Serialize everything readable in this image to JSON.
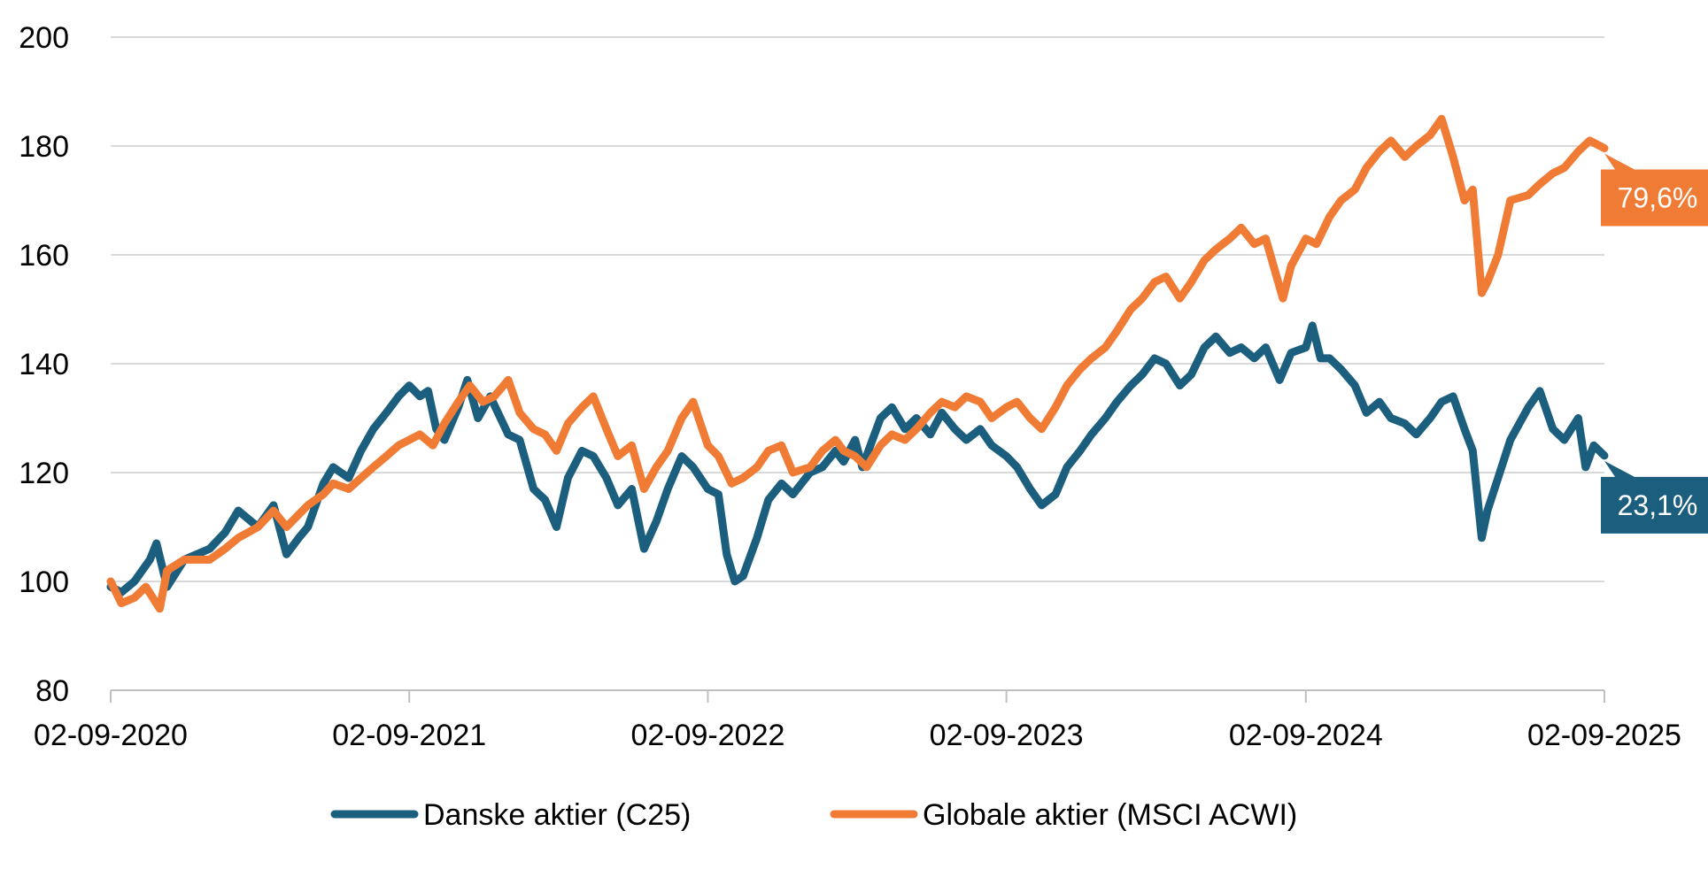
{
  "chart_data": {
    "type": "line",
    "title": "",
    "xlabel": "",
    "ylabel": "",
    "ylim": [
      80,
      200
    ],
    "y_ticks": [
      "80",
      "100",
      "120",
      "140",
      "160",
      "180",
      "200"
    ],
    "x_ticks": [
      "02-09-2020",
      "02-09-2021",
      "02-09-2022",
      "02-09-2023",
      "02-09-2024",
      "02-09-2025"
    ],
    "x_range": [
      "02-09-2020",
      "02-09-2025"
    ],
    "grid": "horizontal",
    "legend_position": "bottom",
    "series": [
      {
        "name": "Danske aktier (C25)",
        "color": "#1b5e7e",
        "end_label": "23,1%",
        "points": [
          [
            "02-09-2020",
            99
          ],
          [
            "15-09-2020",
            98
          ],
          [
            "01-10-2020",
            100
          ],
          [
            "20-10-2020",
            104
          ],
          [
            "28-10-2020",
            107
          ],
          [
            "10-11-2020",
            99
          ],
          [
            "01-12-2020",
            104
          ],
          [
            "01-01-2021",
            106
          ],
          [
            "20-01-2021",
            109
          ],
          [
            "05-02-2021",
            113
          ],
          [
            "01-03-2021",
            110
          ],
          [
            "20-03-2021",
            114
          ],
          [
            "05-04-2021",
            105
          ],
          [
            "20-04-2021",
            108
          ],
          [
            "01-05-2021",
            110
          ],
          [
            "20-05-2021",
            118
          ],
          [
            "01-06-2021",
            121
          ],
          [
            "20-06-2021",
            119
          ],
          [
            "05-07-2021",
            124
          ],
          [
            "20-07-2021",
            128
          ],
          [
            "05-08-2021",
            131
          ],
          [
            "20-08-2021",
            134
          ],
          [
            "02-09-2021",
            136
          ],
          [
            "15-09-2021",
            134
          ],
          [
            "25-09-2021",
            135
          ],
          [
            "05-10-2021",
            128
          ],
          [
            "15-10-2021",
            126
          ],
          [
            "01-11-2021",
            132
          ],
          [
            "12-11-2021",
            137
          ],
          [
            "25-11-2021",
            130
          ],
          [
            "10-12-2021",
            134
          ],
          [
            "01-01-2022",
            127
          ],
          [
            "15-01-2022",
            126
          ],
          [
            "01-02-2022",
            117
          ],
          [
            "15-02-2022",
            115
          ],
          [
            "01-03-2022",
            110
          ],
          [
            "15-03-2022",
            119
          ],
          [
            "01-04-2022",
            124
          ],
          [
            "15-04-2022",
            123
          ],
          [
            "01-05-2022",
            119
          ],
          [
            "15-05-2022",
            114
          ],
          [
            "01-06-2022",
            117
          ],
          [
            "16-06-2022",
            106
          ],
          [
            "01-07-2022",
            111
          ],
          [
            "15-07-2022",
            117
          ],
          [
            "01-08-2022",
            123
          ],
          [
            "15-08-2022",
            121
          ],
          [
            "02-09-2022",
            117
          ],
          [
            "15-09-2022",
            116
          ],
          [
            "25-09-2022",
            105
          ],
          [
            "05-10-2022",
            100
          ],
          [
            "15-10-2022",
            101
          ],
          [
            "01-11-2022",
            108
          ],
          [
            "15-11-2022",
            115
          ],
          [
            "01-12-2022",
            118
          ],
          [
            "15-12-2022",
            116
          ],
          [
            "05-01-2023",
            120
          ],
          [
            "20-01-2023",
            121
          ],
          [
            "05-02-2023",
            124
          ],
          [
            "15-02-2023",
            122
          ],
          [
            "01-03-2023",
            126
          ],
          [
            "10-03-2023",
            121
          ],
          [
            "01-04-2023",
            130
          ],
          [
            "15-04-2023",
            132
          ],
          [
            "01-05-2023",
            128
          ],
          [
            "15-05-2023",
            130
          ],
          [
            "01-06-2023",
            127
          ],
          [
            "15-06-2023",
            131
          ],
          [
            "01-07-2023",
            128
          ],
          [
            "15-07-2023",
            126
          ],
          [
            "01-08-2023",
            128
          ],
          [
            "15-08-2023",
            125
          ],
          [
            "02-09-2023",
            123
          ],
          [
            "15-09-2023",
            121
          ],
          [
            "01-10-2023",
            117
          ],
          [
            "15-10-2023",
            114
          ],
          [
            "01-11-2023",
            116
          ],
          [
            "15-11-2023",
            121
          ],
          [
            "01-12-2023",
            124
          ],
          [
            "15-12-2023",
            127
          ],
          [
            "01-01-2024",
            130
          ],
          [
            "15-01-2024",
            133
          ],
          [
            "01-02-2024",
            136
          ],
          [
            "15-02-2024",
            138
          ],
          [
            "01-03-2024",
            141
          ],
          [
            "15-03-2024",
            140
          ],
          [
            "01-04-2024",
            136
          ],
          [
            "15-04-2024",
            138
          ],
          [
            "01-05-2024",
            143
          ],
          [
            "15-05-2024",
            145
          ],
          [
            "01-06-2024",
            142
          ],
          [
            "15-06-2024",
            143
          ],
          [
            "01-07-2024",
            141
          ],
          [
            "15-07-2024",
            143
          ],
          [
            "01-08-2024",
            137
          ],
          [
            "15-08-2024",
            142
          ],
          [
            "02-09-2024",
            143
          ],
          [
            "10-09-2024",
            147
          ],
          [
            "20-09-2024",
            141
          ],
          [
            "01-10-2024",
            141
          ],
          [
            "15-10-2024",
            139
          ],
          [
            "01-11-2024",
            136
          ],
          [
            "15-11-2024",
            131
          ],
          [
            "01-12-2024",
            133
          ],
          [
            "15-12-2024",
            130
          ],
          [
            "01-01-2025",
            129
          ],
          [
            "15-01-2025",
            127
          ],
          [
            "01-02-2025",
            130
          ],
          [
            "15-02-2025",
            133
          ],
          [
            "01-03-2025",
            134
          ],
          [
            "15-03-2025",
            128
          ],
          [
            "25-03-2025",
            124
          ],
          [
            "05-04-2025",
            108
          ],
          [
            "12-04-2025",
            113
          ],
          [
            "25-04-2025",
            119
          ],
          [
            "10-05-2025",
            126
          ],
          [
            "01-06-2025",
            132
          ],
          [
            "15-06-2025",
            135
          ],
          [
            "01-07-2025",
            128
          ],
          [
            "15-07-2025",
            126
          ],
          [
            "01-08-2025",
            130
          ],
          [
            "10-08-2025",
            121
          ],
          [
            "20-08-2025",
            125
          ],
          [
            "02-09-2025",
            123.1
          ]
        ]
      },
      {
        "name": "Globale aktier (MSCI ACWI)",
        "color": "#ef7b34",
        "end_label": "79,6%",
        "points": [
          [
            "02-09-2020",
            100
          ],
          [
            "15-09-2020",
            96
          ],
          [
            "01-10-2020",
            97
          ],
          [
            "15-10-2020",
            99
          ],
          [
            "01-11-2020",
            95
          ],
          [
            "10-11-2020",
            102
          ],
          [
            "01-12-2020",
            104
          ],
          [
            "01-01-2021",
            104
          ],
          [
            "20-01-2021",
            106
          ],
          [
            "05-02-2021",
            108
          ],
          [
            "01-03-2021",
            110
          ],
          [
            "20-03-2021",
            113
          ],
          [
            "05-04-2021",
            110
          ],
          [
            "01-05-2021",
            114
          ],
          [
            "20-05-2021",
            116
          ],
          [
            "01-06-2021",
            118
          ],
          [
            "20-06-2021",
            117
          ],
          [
            "05-07-2021",
            119
          ],
          [
            "20-07-2021",
            121
          ],
          [
            "05-08-2021",
            123
          ],
          [
            "20-08-2021",
            125
          ],
          [
            "02-09-2021",
            126
          ],
          [
            "15-09-2021",
            127
          ],
          [
            "01-10-2021",
            125
          ],
          [
            "15-10-2021",
            129
          ],
          [
            "01-11-2021",
            133
          ],
          [
            "15-11-2021",
            136
          ],
          [
            "01-12-2021",
            133
          ],
          [
            "15-12-2021",
            134
          ],
          [
            "01-01-2022",
            137
          ],
          [
            "15-01-2022",
            131
          ],
          [
            "01-02-2022",
            128
          ],
          [
            "15-02-2022",
            127
          ],
          [
            "01-03-2022",
            124
          ],
          [
            "15-03-2022",
            129
          ],
          [
            "01-04-2022",
            132
          ],
          [
            "15-04-2022",
            134
          ],
          [
            "01-05-2022",
            128
          ],
          [
            "15-05-2022",
            123
          ],
          [
            "01-06-2022",
            125
          ],
          [
            "16-06-2022",
            117
          ],
          [
            "01-07-2022",
            121
          ],
          [
            "15-07-2022",
            124
          ],
          [
            "01-08-2022",
            130
          ],
          [
            "15-08-2022",
            133
          ],
          [
            "02-09-2022",
            125
          ],
          [
            "15-09-2022",
            123
          ],
          [
            "01-10-2022",
            118
          ],
          [
            "15-10-2022",
            119
          ],
          [
            "01-11-2022",
            121
          ],
          [
            "15-11-2022",
            124
          ],
          [
            "01-12-2022",
            125
          ],
          [
            "15-12-2022",
            120
          ],
          [
            "05-01-2023",
            121
          ],
          [
            "20-01-2023",
            124
          ],
          [
            "05-02-2023",
            126
          ],
          [
            "15-02-2023",
            124
          ],
          [
            "01-03-2023",
            123
          ],
          [
            "15-03-2023",
            121
          ],
          [
            "01-04-2023",
            125
          ],
          [
            "15-04-2023",
            127
          ],
          [
            "01-05-2023",
            126
          ],
          [
            "15-05-2023",
            128
          ],
          [
            "01-06-2023",
            131
          ],
          [
            "15-06-2023",
            133
          ],
          [
            "01-07-2023",
            132
          ],
          [
            "15-07-2023",
            134
          ],
          [
            "01-08-2023",
            133
          ],
          [
            "15-08-2023",
            130
          ],
          [
            "02-09-2023",
            132
          ],
          [
            "15-09-2023",
            133
          ],
          [
            "01-10-2023",
            130
          ],
          [
            "15-10-2023",
            128
          ],
          [
            "01-11-2023",
            132
          ],
          [
            "15-11-2023",
            136
          ],
          [
            "01-12-2023",
            139
          ],
          [
            "15-12-2023",
            141
          ],
          [
            "01-01-2024",
            143
          ],
          [
            "15-01-2024",
            146
          ],
          [
            "01-02-2024",
            150
          ],
          [
            "15-02-2024",
            152
          ],
          [
            "01-03-2024",
            155
          ],
          [
            "15-03-2024",
            156
          ],
          [
            "01-04-2024",
            152
          ],
          [
            "15-04-2024",
            155
          ],
          [
            "01-05-2024",
            159
          ],
          [
            "15-05-2024",
            161
          ],
          [
            "01-06-2024",
            163
          ],
          [
            "15-06-2024",
            165
          ],
          [
            "01-07-2024",
            162
          ],
          [
            "15-07-2024",
            163
          ],
          [
            "05-08-2024",
            152
          ],
          [
            "15-08-2024",
            158
          ],
          [
            "02-09-2024",
            163
          ],
          [
            "15-09-2024",
            162
          ],
          [
            "01-10-2024",
            167
          ],
          [
            "15-10-2024",
            170
          ],
          [
            "01-11-2024",
            172
          ],
          [
            "15-11-2024",
            176
          ],
          [
            "01-12-2024",
            179
          ],
          [
            "15-12-2024",
            181
          ],
          [
            "01-01-2025",
            178
          ],
          [
            "15-01-2025",
            180
          ],
          [
            "01-02-2025",
            182
          ],
          [
            "15-02-2025",
            185
          ],
          [
            "01-03-2025",
            178
          ],
          [
            "15-03-2025",
            170
          ],
          [
            "25-03-2025",
            172
          ],
          [
            "05-04-2025",
            153
          ],
          [
            "12-04-2025",
            155
          ],
          [
            "25-04-2025",
            160
          ],
          [
            "10-05-2025",
            170
          ],
          [
            "01-06-2025",
            171
          ],
          [
            "15-06-2025",
            173
          ],
          [
            "01-07-2025",
            175
          ],
          [
            "15-07-2025",
            176
          ],
          [
            "01-08-2025",
            179
          ],
          [
            "15-08-2025",
            181
          ],
          [
            "02-09-2025",
            179.6
          ]
        ]
      }
    ]
  }
}
